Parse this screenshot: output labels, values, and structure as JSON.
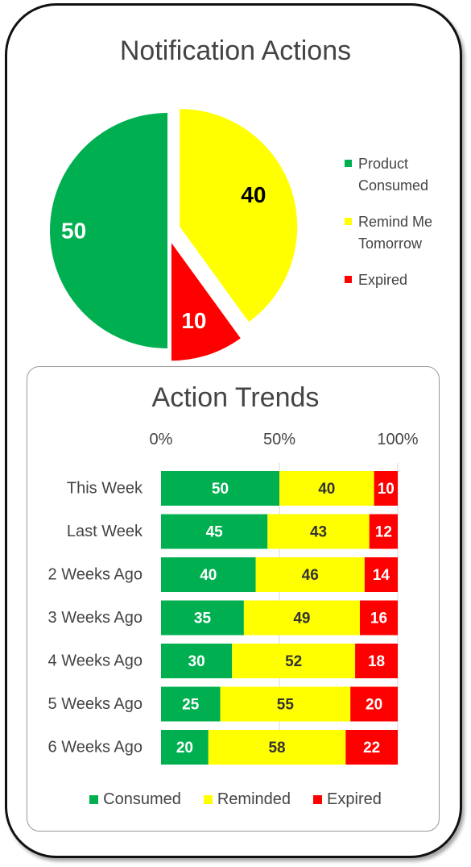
{
  "colors": {
    "consumed": "#00b050",
    "reminded": "#ffff00",
    "expired": "#ff0000",
    "text": "#444444"
  },
  "chart_data": [
    {
      "type": "pie",
      "title": "Notification Actions",
      "slices": [
        {
          "label": "Product Consumed",
          "value": 50,
          "color": "#00b050",
          "exploded": false
        },
        {
          "label": "Remind Me Tomorrow",
          "value": 40,
          "color": "#ffff00",
          "exploded": true
        },
        {
          "label": "Expired",
          "value": 10,
          "color": "#ff0000",
          "exploded": true
        }
      ],
      "legend": "right"
    },
    {
      "type": "bar",
      "orientation": "horizontal",
      "stacked": "percent",
      "title": "Action Trends",
      "categories": [
        "This Week",
        "Last Week",
        "2 Weeks Ago",
        "3 Weeks Ago",
        "4 Weeks Ago",
        "5 Weeks Ago",
        "6 Weeks Ago"
      ],
      "series": [
        {
          "name": "Consumed",
          "color": "#00b050",
          "values": [
            50,
            45,
            40,
            35,
            30,
            25,
            20
          ]
        },
        {
          "name": "Reminded",
          "color": "#ffff00",
          "values": [
            40,
            43,
            46,
            49,
            52,
            55,
            58
          ]
        },
        {
          "name": "Expired",
          "color": "#ff0000",
          "values": [
            10,
            12,
            14,
            16,
            18,
            20,
            22
          ]
        }
      ],
      "xticks": [
        "0%",
        "50%",
        "100%"
      ],
      "xlim": [
        0,
        100
      ],
      "legend": "bottom",
      "grid": "vertical"
    }
  ]
}
